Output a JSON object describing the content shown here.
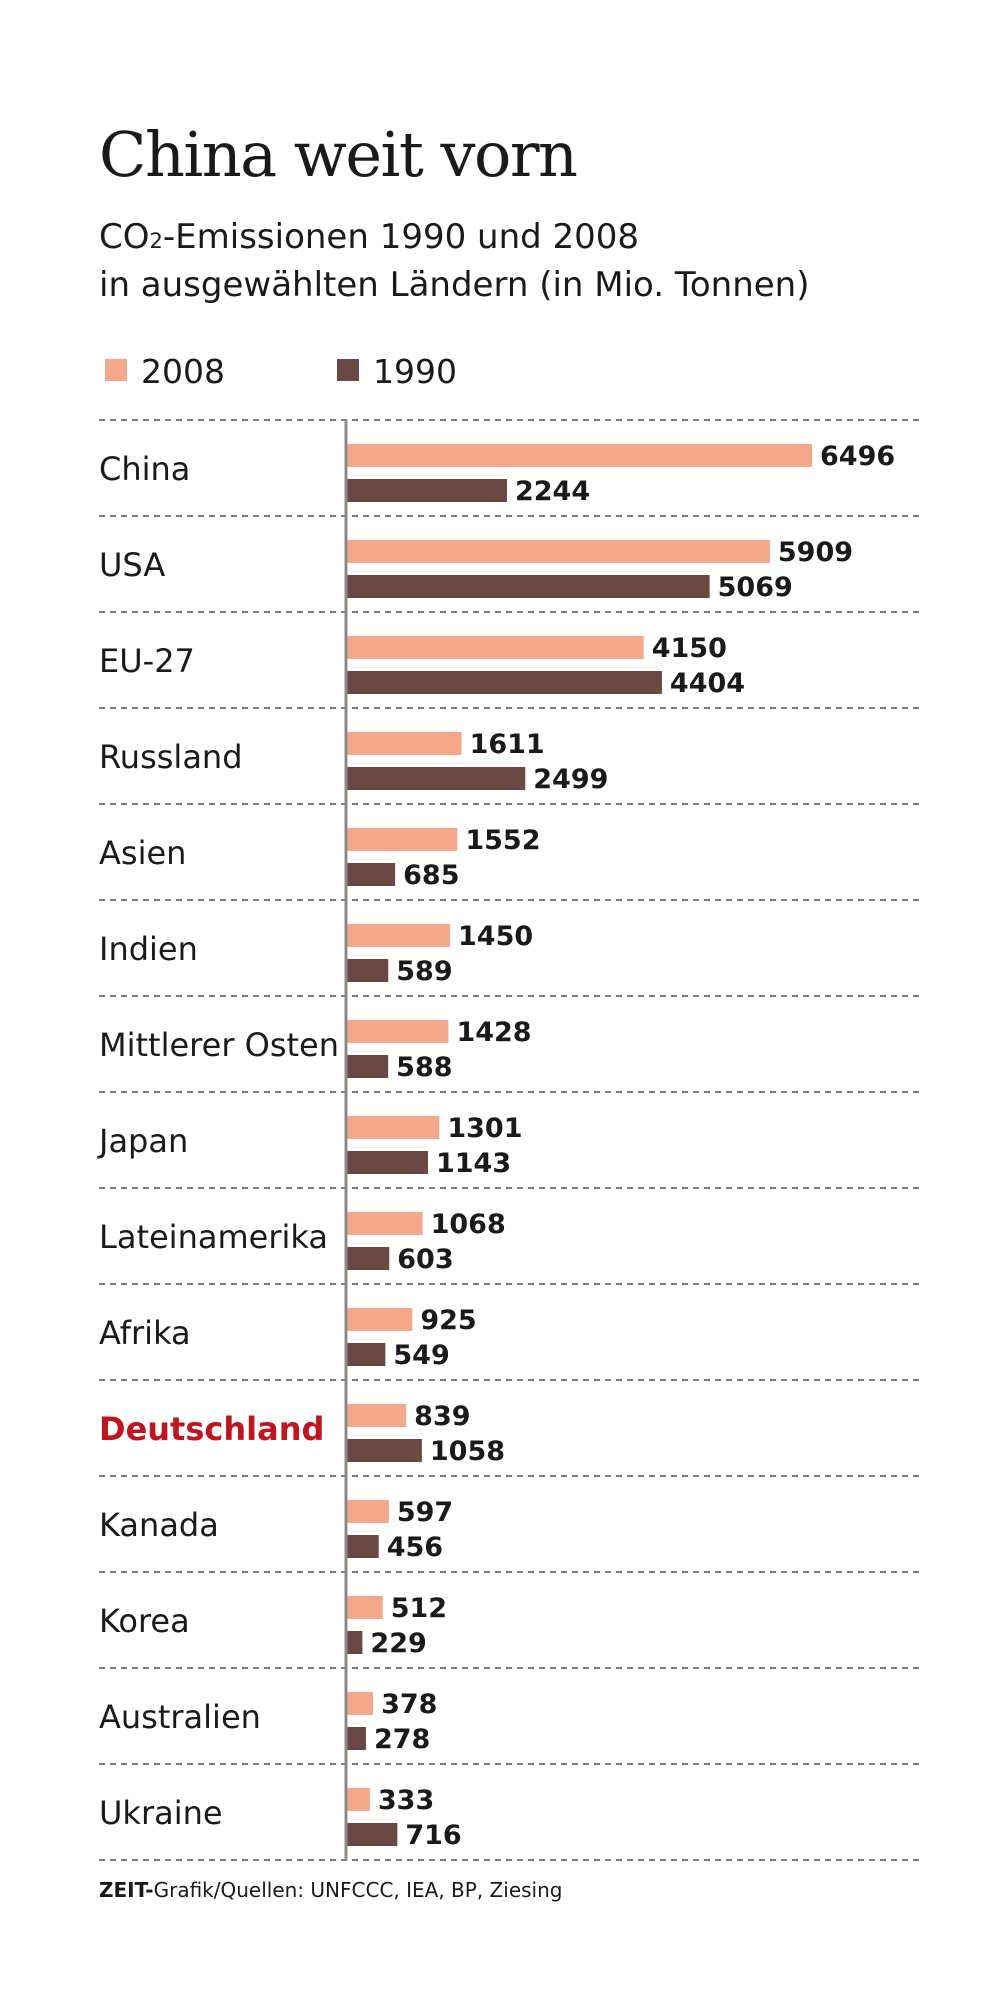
{
  "title": "China weit vorn",
  "subtitle": {
    "line1_prefix": "CO",
    "line1_subscript": "2",
    "line1_suffix": "-Emissionen 1990 und 2008",
    "line2": "in ausgewählten Ländern (in Mio. Tonnen)"
  },
  "source": {
    "brand": "ZEIT-",
    "text": "Grafik/Quellen: UNFCCC, IEA, BP, Ziesing"
  },
  "colors": {
    "bar_2008": "#F4A889",
    "bar_1990": "#6B4844",
    "highlight_label": "#C0141F",
    "text": "#1a1a1a",
    "grid": "#7a7a7a"
  },
  "chart_data": {
    "type": "bar",
    "orientation": "horizontal",
    "categories": [
      "China",
      "USA",
      "EU-27",
      "Russland",
      "Asien",
      "Indien",
      "Mittlerer Osten",
      "Japan",
      "Lateinamerika",
      "Afrika",
      "Deutschland",
      "Kanada",
      "Korea",
      "Australien",
      "Ukraine"
    ],
    "highlight_category": "Deutschland",
    "series": [
      {
        "name": "2008",
        "color": "#F4A889",
        "values": [
          6496,
          5909,
          4150,
          1611,
          1552,
          1450,
          1428,
          1301,
          1068,
          925,
          839,
          597,
          512,
          378,
          333
        ]
      },
      {
        "name": "1990",
        "color": "#6B4844",
        "values": [
          2244,
          5069,
          4404,
          2499,
          685,
          589,
          588,
          1143,
          603,
          549,
          1058,
          456,
          229,
          278,
          716
        ]
      }
    ],
    "xlim": [
      0,
      6496
    ],
    "grid": "dashed separators between categories",
    "legend_position": "top-left"
  }
}
